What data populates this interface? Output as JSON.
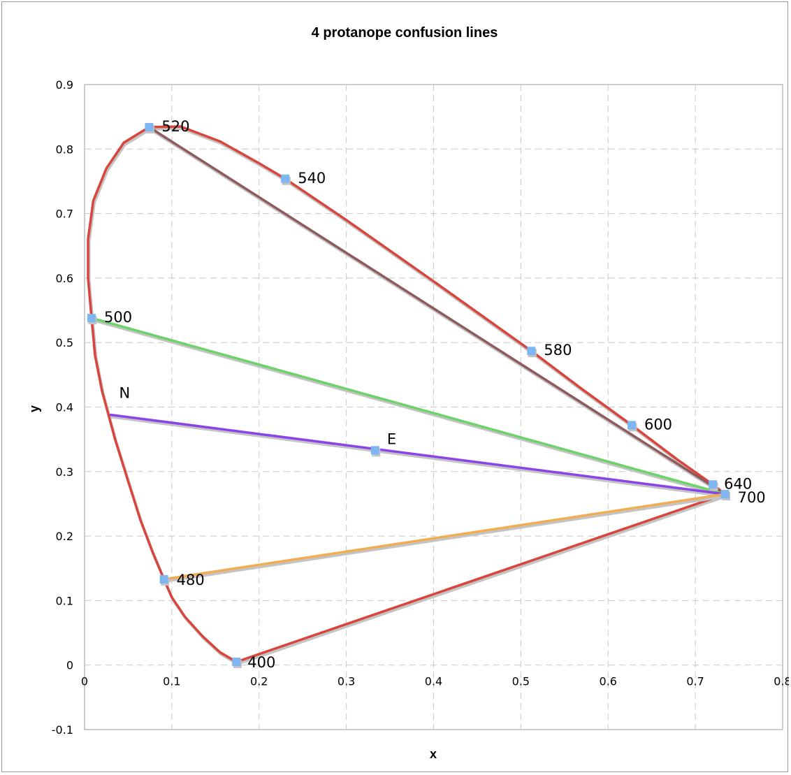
{
  "chart_data": {
    "type": "scatter",
    "title": "4 protanope confusion lines",
    "xlabel": "x",
    "ylabel": "y",
    "xlim": [
      0,
      0.8
    ],
    "ylim": [
      -0.1,
      0.9
    ],
    "x_ticks": [
      "0",
      "0.1",
      "0.2",
      "0.3",
      "0.4",
      "0.5",
      "0.6",
      "0.7",
      "0.8"
    ],
    "y_ticks": [
      "-0.1",
      "0",
      "0.1",
      "0.2",
      "0.3",
      "0.4",
      "0.5",
      "0.6",
      "0.7",
      "0.8",
      "0.9"
    ],
    "grid": "dashed",
    "colors": {
      "locus": "#d9453c",
      "brown": "#8e5a5c",
      "green": "#6cd36a",
      "purple": "#8a44e8",
      "orange": "#f2ad52",
      "marker": "#7fb6f2",
      "shadow": "#c4c4c4",
      "grid": "#c8c8c8"
    },
    "spectral_locus": [
      [
        0.174,
        0.005
      ],
      [
        0.155,
        0.02
      ],
      [
        0.135,
        0.045
      ],
      [
        0.115,
        0.075
      ],
      [
        0.1,
        0.105
      ],
      [
        0.091,
        0.133
      ],
      [
        0.078,
        0.175
      ],
      [
        0.064,
        0.225
      ],
      [
        0.05,
        0.285
      ],
      [
        0.035,
        0.35
      ],
      [
        0.02,
        0.425
      ],
      [
        0.012,
        0.48
      ],
      [
        0.008,
        0.538
      ],
      [
        0.004,
        0.6
      ],
      [
        0.004,
        0.66
      ],
      [
        0.01,
        0.72
      ],
      [
        0.025,
        0.77
      ],
      [
        0.045,
        0.81
      ],
      [
        0.074,
        0.834
      ],
      [
        0.11,
        0.835
      ],
      [
        0.155,
        0.812
      ],
      [
        0.2,
        0.778
      ],
      [
        0.23,
        0.754
      ],
      [
        0.3,
        0.69
      ],
      [
        0.4,
        0.595
      ],
      [
        0.512,
        0.487
      ],
      [
        0.57,
        0.428
      ],
      [
        0.627,
        0.372
      ],
      [
        0.68,
        0.318
      ],
      [
        0.72,
        0.28
      ],
      [
        0.734,
        0.265
      ]
    ],
    "purple_line": [
      [
        0.174,
        0.005
      ],
      [
        0.734,
        0.265
      ]
    ],
    "confusion_lines": [
      {
        "color": "brown",
        "points": [
          [
            0.074,
            0.834
          ],
          [
            0.734,
            0.265
          ]
        ]
      },
      {
        "color": "green",
        "points": [
          [
            0.008,
            0.538
          ],
          [
            0.734,
            0.265
          ]
        ]
      },
      {
        "color": "purple",
        "points": [
          [
            0.03,
            0.388
          ],
          [
            0.734,
            0.265
          ]
        ]
      },
      {
        "color": "orange",
        "points": [
          [
            0.091,
            0.133
          ],
          [
            0.734,
            0.265
          ]
        ]
      }
    ],
    "markers": [
      {
        "label": "520",
        "x": 0.074,
        "y": 0.834
      },
      {
        "label": "540",
        "x": 0.23,
        "y": 0.754
      },
      {
        "label": "500",
        "x": 0.008,
        "y": 0.538
      },
      {
        "label": "580",
        "x": 0.512,
        "y": 0.487
      },
      {
        "label": "600",
        "x": 0.627,
        "y": 0.372
      },
      {
        "label": "640",
        "x": 0.72,
        "y": 0.28
      },
      {
        "label": "700",
        "x": 0.734,
        "y": 0.265
      },
      {
        "label": "480",
        "x": 0.091,
        "y": 0.133
      },
      {
        "label": "400",
        "x": 0.174,
        "y": 0.005
      },
      {
        "label": "E",
        "x": 0.333,
        "y": 0.333
      }
    ],
    "annotations": [
      {
        "text": "N",
        "x": 0.03,
        "y": 0.388
      }
    ]
  }
}
